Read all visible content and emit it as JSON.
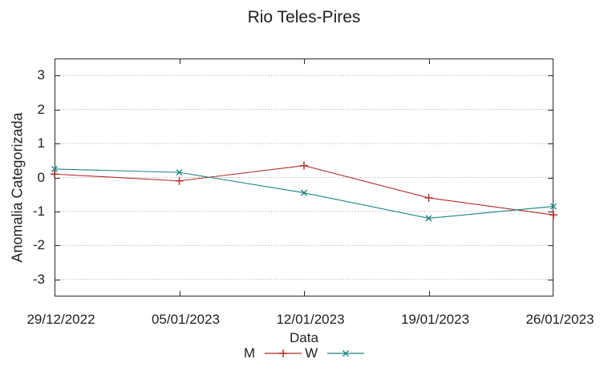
{
  "title": "Rio Teles-Pires",
  "chart_data": {
    "type": "line",
    "title": "Rio Teles-Pires",
    "xlabel": "Data",
    "ylabel": "Anomalia Categorizada",
    "categories": [
      "29/12/2022",
      "05/01/2023",
      "12/01/2023",
      "19/01/2023",
      "26/01/2023"
    ],
    "y_ticks": [
      3,
      2,
      1,
      0,
      -1,
      -2,
      -3
    ],
    "ylim": [
      -3.5,
      3.5
    ],
    "grid": "horizontal-dotted",
    "legend_position": "bottom-center",
    "series": [
      {
        "name": "M",
        "marker": "plus",
        "color": "#b12a24",
        "values": [
          0.1,
          -0.1,
          0.35,
          -0.6,
          -1.1
        ]
      },
      {
        "name": "W",
        "marker": "cross",
        "color": "#1d8380",
        "values": [
          0.25,
          0.15,
          -0.45,
          -1.2,
          -0.85
        ]
      }
    ],
    "colors": {
      "axis": "#2a2a2a",
      "grid": "#999999",
      "text": "#1f1f1f",
      "background": "#ffffff"
    }
  }
}
